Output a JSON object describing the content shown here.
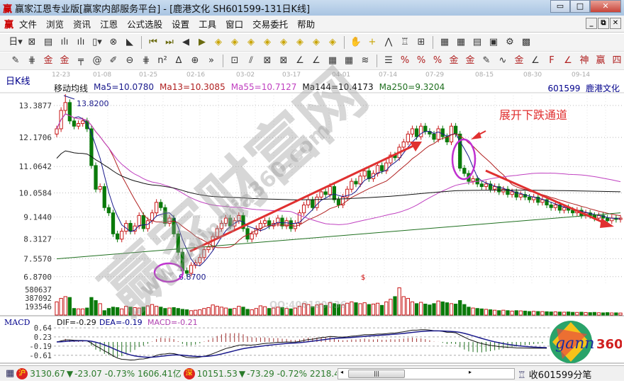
{
  "window": {
    "title": "赢家江恩专业版[赢家内部服务平台] - [鹿港文化  SH601599-131日K线]",
    "logo": "赢",
    "buttons": [
      "minimize",
      "maximize",
      "close"
    ]
  },
  "menu": {
    "logo": "赢",
    "items": [
      "文件",
      "浏览",
      "资讯",
      "江恩",
      "公式选股",
      "设置",
      "工具",
      "窗口",
      "交易委托",
      "帮助"
    ]
  },
  "toolbar1": [
    {
      "icon": "period-select-icon",
      "glyph": "日▾"
    },
    {
      "icon": "kline-icon",
      "glyph": "⊠"
    },
    {
      "icon": "info-icon",
      "glyph": "▤"
    },
    {
      "icon": "chart3-icon",
      "glyph": "ılı"
    },
    {
      "icon": "chart9-icon",
      "glyph": "ılı"
    },
    {
      "icon": "candle-icon",
      "glyph": "▯▾"
    },
    {
      "icon": "gann-icon",
      "glyph": "⊗"
    },
    {
      "icon": "flag-icon",
      "glyph": "◣"
    },
    {
      "icon": "first-icon",
      "glyph": "⏮"
    },
    {
      "icon": "last-icon",
      "glyph": "⏭"
    },
    {
      "icon": "prev-icon",
      "glyph": "◀"
    },
    {
      "icon": "next-icon",
      "glyph": "▶"
    },
    {
      "icon": "zoom-left-icon",
      "glyph": "◈"
    },
    {
      "icon": "zoom-right-icon",
      "glyph": "◈"
    },
    {
      "icon": "expand-icon",
      "glyph": "◈"
    },
    {
      "icon": "shrink-icon",
      "glyph": "◈"
    },
    {
      "icon": "cross-icon",
      "glyph": "◈"
    },
    {
      "icon": "move-icon",
      "glyph": "◈"
    },
    {
      "icon": "zoom7-icon",
      "glyph": "◈"
    },
    {
      "icon": "zoom8-icon",
      "glyph": "◈"
    },
    {
      "icon": "hand-icon",
      "glyph": "✋"
    },
    {
      "icon": "crosshair-icon",
      "glyph": "+"
    },
    {
      "icon": "draw-icon",
      "glyph": "⋀"
    },
    {
      "icon": "shirt-icon",
      "glyph": "♖"
    },
    {
      "icon": "num-icon",
      "glyph": "⊞"
    },
    {
      "icon": "calendar-icon",
      "glyph": "▦"
    },
    {
      "icon": "calc-icon",
      "glyph": "▦"
    },
    {
      "icon": "doc-icon",
      "glyph": "▤"
    },
    {
      "icon": "save-icon",
      "glyph": "▣"
    },
    {
      "icon": "tool-icon",
      "glyph": "⚙"
    },
    {
      "icon": "print-icon",
      "glyph": "▩"
    }
  ],
  "toolbar2": [
    {
      "icon": "pen-icon",
      "glyph": "✎"
    },
    {
      "icon": "parallel-icon",
      "glyph": "⋕"
    },
    {
      "icon": "gold1-icon",
      "glyph": "金"
    },
    {
      "icon": "gold2-icon",
      "glyph": "金"
    },
    {
      "icon": "fib-icon",
      "glyph": "╤"
    },
    {
      "icon": "spiral-icon",
      "glyph": "@"
    },
    {
      "icon": "brush-icon",
      "glyph": "✐"
    },
    {
      "icon": "circle-icon",
      "glyph": "⊖"
    },
    {
      "icon": "grid-icon",
      "glyph": "⋕"
    },
    {
      "icon": "n2-icon",
      "glyph": "n²"
    },
    {
      "icon": "fan-icon",
      "glyph": "∆"
    },
    {
      "icon": "target-icon",
      "glyph": "⊕"
    },
    {
      "icon": "more-icon",
      "glyph": "»"
    },
    {
      "icon": "box-icon",
      "glyph": "⊡"
    },
    {
      "icon": "fan-lines-icon",
      "glyph": "⫽"
    },
    {
      "icon": "gann-box-icon",
      "glyph": "⊠"
    },
    {
      "icon": "gann-grid-icon",
      "glyph": "⊠"
    },
    {
      "icon": "angle-icon",
      "glyph": "∠"
    },
    {
      "icon": "angle2-icon",
      "glyph": "∠"
    },
    {
      "icon": "square-icon",
      "glyph": "▦"
    },
    {
      "icon": "square2-icon",
      "glyph": "▦"
    },
    {
      "icon": "lines-icon",
      "glyph": "≋"
    },
    {
      "icon": "ruler-icon",
      "glyph": "☰"
    },
    {
      "icon": "percent-line-icon",
      "glyph": "%"
    },
    {
      "icon": "percent-icon",
      "glyph": "%"
    },
    {
      "icon": "percent2-icon",
      "glyph": "%"
    },
    {
      "icon": "gold-circle-icon",
      "glyph": "金"
    },
    {
      "icon": "gold-line-icon",
      "glyph": "金"
    },
    {
      "icon": "pen2-icon",
      "glyph": "✎"
    },
    {
      "icon": "wave-icon",
      "glyph": "∿"
    },
    {
      "icon": "gold3-icon",
      "glyph": "金"
    },
    {
      "icon": "angle3-icon",
      "glyph": "∠"
    },
    {
      "icon": "f-angle-icon",
      "glyph": "F"
    },
    {
      "icon": "gold-angle-icon",
      "glyph": "∠"
    },
    {
      "icon": "shen-icon",
      "glyph": "神"
    },
    {
      "icon": "ying-icon",
      "glyph": "赢"
    },
    {
      "icon": "four-icon",
      "glyph": "四"
    }
  ],
  "period_label": "日K线",
  "dates": [
    "12-23",
    "01-08",
    "01-25",
    "02-16",
    "03-02",
    "03-17",
    "04-01",
    "07-14",
    "07-29",
    "08-15",
    "08-30",
    "09-14"
  ],
  "indicator": {
    "name": "移动均线",
    "ma": [
      {
        "label": "Ma5=10.0780",
        "color": "#1a1a8c"
      },
      {
        "label": "Ma13=10.3085",
        "color": "#b02020"
      },
      {
        "label": "Ma55=10.7127",
        "color": "#c040c0"
      },
      {
        "label": "Ma144=10.4173",
        "color": "#111111"
      },
      {
        "label": "Ma250=9.3204",
        "color": "#207020"
      }
    ]
  },
  "stock": {
    "code": "601599",
    "name": "鹿港文化"
  },
  "annotations": {
    "high_label": "13.8200",
    "low_label": "6.8700",
    "channel_text": "展开下跌通道",
    "volume_mark": "$"
  },
  "watermarks": {
    "brand": "赢家财富网",
    "site": "www.yingjia360.com",
    "qq": "QQ:400180036"
  },
  "macd": {
    "title": "MACD",
    "dif": "DIF=-0.29",
    "dea": "DEA=-0.19",
    "macd": "MACD=-0.21",
    "ticks": [
      "0.64",
      "0.23",
      "-0.19",
      "-0.61"
    ]
  },
  "status": {
    "sh_icon": "沪",
    "sh_index": "3130.67",
    "sh_change": "-23.07",
    "sh_pct": "-0.73%",
    "sh_amount": "1606.41亿",
    "sz_icon": "深",
    "sz_index": "10151.53",
    "sz_change": "-73.29",
    "sz_pct": "-0.72%",
    "sz_amount": "2218.4",
    "feed": "收601599分笔"
  },
  "logo360": {
    "text1": "gann",
    "text2": "360"
  },
  "chart_data": {
    "type": "candlestick",
    "title": "SH601599-131日K线",
    "price_ticks": [
      13.3877,
      12.1706,
      11.0642,
      10.0584,
      9.144,
      8.3127,
      7.557,
      6.87
    ],
    "volume_ticks": [
      580637,
      387092,
      193546
    ],
    "ylim": [
      6.6,
      13.9
    ],
    "up_color": "#c81818",
    "down_color": "#0a7a0a",
    "closes": [
      12.5,
      13.2,
      13.5,
      12.8,
      12.6,
      12.7,
      12.8,
      12.5,
      11.1,
      10.2,
      10.3,
      9.5,
      9.3,
      8.5,
      8.3,
      8.6,
      8.9,
      8.6,
      8.8,
      9.2,
      8.7,
      9.0,
      9.3,
      9.7,
      9.5,
      8.9,
      9.1,
      8.5,
      7.8,
      7.1,
      7.0,
      7.3,
      7.4,
      7.6,
      7.9,
      8.0,
      8.4,
      8.7,
      8.9,
      9.1,
      8.8,
      9.0,
      9.2,
      8.7,
      8.3,
      8.5,
      8.7,
      8.9,
      9.0,
      8.8,
      8.9,
      9.1,
      8.8,
      9.0,
      8.7,
      8.9,
      9.3,
      9.6,
      9.8,
      9.5,
      9.9,
      10.1,
      10.0,
      10.3,
      9.8,
      9.6,
      9.9,
      10.2,
      10.5,
      10.4,
      10.7,
      10.9,
      10.6,
      10.8,
      11.1,
      10.9,
      11.2,
      11.5,
      11.4,
      11.8,
      12.0,
      12.3,
      12.5,
      12.2,
      12.6,
      12.4,
      12.3,
      12.1,
      12.5,
      12.2,
      12.0,
      12.6,
      12.3,
      11.0,
      10.8,
      10.5,
      10.6,
      10.4,
      10.3,
      10.4,
      10.2,
      10.3,
      10.1,
      10.2,
      10.0,
      10.1,
      9.9,
      10.0,
      9.9,
      9.8,
      9.9,
      9.7,
      9.8,
      9.6,
      9.5,
      9.6,
      9.4,
      9.5,
      9.4,
      9.3,
      9.4,
      9.2,
      9.3,
      9.2,
      9.1,
      9.2,
      9.1,
      9.0,
      9.1,
      9.05,
      9.1
    ],
    "high": {
      "value": 13.82
    },
    "low": {
      "value": 6.87
    },
    "volumes": [
      300000,
      380000,
      420000,
      400000,
      150000,
      140000,
      140000,
      160000,
      400000,
      330000,
      260000,
      100000,
      150000,
      180000,
      170000,
      140000,
      200000,
      180000,
      170000,
      160000,
      180000,
      210000,
      240000,
      200000,
      180000,
      150000,
      160000,
      170000,
      150000,
      130000,
      120000,
      100000,
      110000,
      120000,
      150000,
      170000,
      230000,
      200000,
      180000,
      160000,
      140000,
      150000,
      200000,
      180000,
      130000,
      120000,
      150000,
      210000,
      190000,
      150000,
      160000,
      180000,
      170000,
      150000,
      140000,
      160000,
      200000,
      260000,
      240000,
      190000,
      230000,
      250000,
      220000,
      280000,
      260000,
      240000,
      230000,
      270000,
      300000,
      280000,
      260000,
      280000,
      240000,
      250000,
      270000,
      220000,
      300000,
      360000,
      420000,
      620000,
      420000,
      380000,
      300000,
      260000,
      290000,
      250000,
      230000,
      260000,
      320000,
      300000,
      280000,
      260000,
      250000,
      330000,
      240000,
      180000,
      160000,
      150000,
      140000,
      130000,
      120000,
      110000,
      100000,
      110000,
      100000,
      90000,
      100000,
      95000,
      90000,
      80000,
      85000,
      80000,
      78000,
      75000,
      70000,
      72000,
      68000,
      65000,
      70000,
      62000,
      60000,
      65000,
      58000,
      55000,
      60000,
      52000,
      50000,
      55000,
      48000,
      50000,
      46000
    ]
  }
}
